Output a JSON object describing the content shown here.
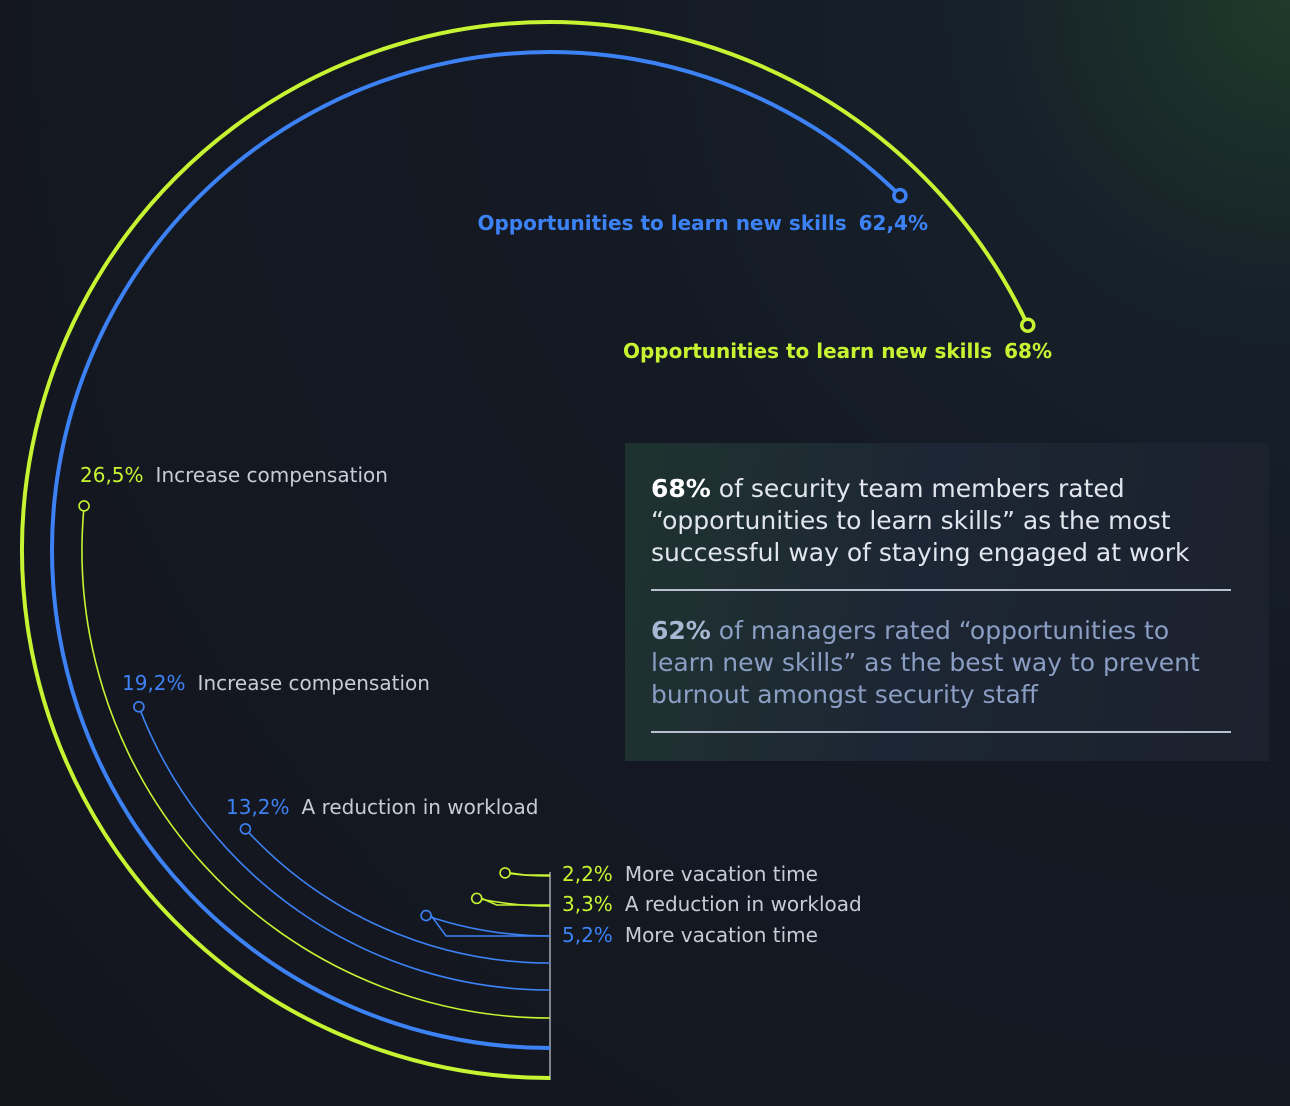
{
  "chart_data": {
    "type": "radial_bar",
    "full_circle_value": 100,
    "bars": [
      {
        "label": "Opportunities to learn new skills",
        "value": 68,
        "value_label": "68%",
        "color": "#c6f432"
      },
      {
        "label": "Opportunities to learn new skills",
        "value": 62.4,
        "value_label": "62,4%",
        "color": "#3d82f5"
      },
      {
        "label": "Increase compensation",
        "value": 26.5,
        "value_label": "26,5%",
        "color": "#c6f432"
      },
      {
        "label": "Increase compensation",
        "value": 19.2,
        "value_label": "19,2%",
        "color": "#3d82f5"
      },
      {
        "label": "A reduction in workload",
        "value": 13.2,
        "value_label": "13,2%",
        "color": "#3d82f5"
      },
      {
        "label": "More vacation time",
        "value": 5.2,
        "value_label": "5,2%",
        "color": "#3d82f5"
      },
      {
        "label": "A reduction in workload",
        "value": 3.3,
        "value_label": "3,3%",
        "color": "#c6f432"
      },
      {
        "label": "More vacation time",
        "value": 2.2,
        "value_label": "2,2%",
        "color": "#c6f432"
      }
    ],
    "annotations": [
      {
        "highlight": "68%",
        "text": "of security team members rated “opportunities to learn skills” as the most successful way of staying engaged at work"
      },
      {
        "highlight": "62%",
        "text": "of managers rated “opportunities to learn new skills” as the best way to prevent burnout amongst security staff"
      }
    ]
  }
}
